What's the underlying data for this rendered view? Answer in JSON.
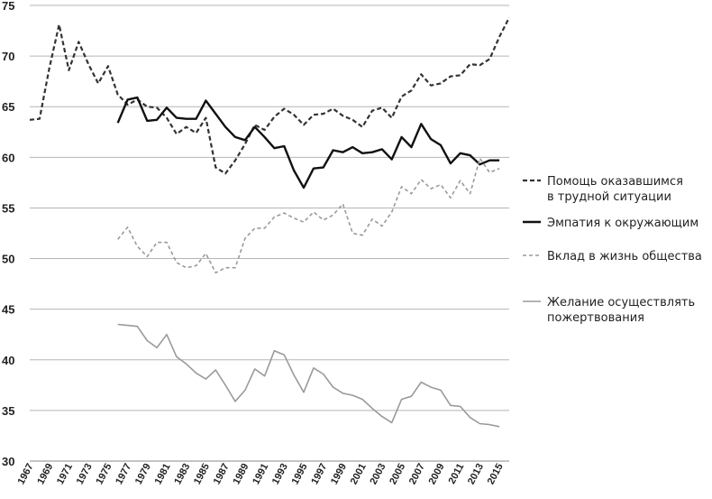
{
  "chart_data": {
    "type": "line",
    "ylim": [
      30,
      75
    ],
    "yticks": [
      30,
      35,
      40,
      45,
      50,
      55,
      60,
      65,
      70,
      75
    ],
    "xlim": [
      1967,
      2016
    ],
    "xticks": [
      "1967",
      "1969",
      "1971",
      "1973",
      "1975",
      "1977",
      "1979",
      "1981",
      "1983",
      "1985",
      "1987",
      "1989",
      "1991",
      "1993",
      "1995",
      "1997",
      "1999",
      "2001",
      "2003",
      "2005",
      "2007",
      "2009",
      "2011",
      "2013",
      "2015"
    ],
    "grid": "horizontal",
    "legend_position": "right",
    "series": [
      {
        "name": "Помощь оказавшимся в трудной ситуации",
        "legend_lines": [
          "Помощь оказавшимся",
          "в трудной ситуации"
        ],
        "color": "#333333",
        "style": "dashed-thick",
        "x": [
          1967,
          1968,
          1969,
          1970,
          1971,
          1972,
          1973,
          1974,
          1975,
          1976,
          1977,
          1978,
          1979,
          1980,
          1981,
          1982,
          1983,
          1984,
          1985,
          1986,
          1987,
          1988,
          1989,
          1990,
          1991,
          1992,
          1993,
          1994,
          1995,
          1996,
          1997,
          1998,
          1999,
          2000,
          2001,
          2002,
          2003,
          2004,
          2005,
          2006,
          2007,
          2008,
          2009,
          2010,
          2011,
          2012,
          2013,
          2014,
          2015,
          2016
        ],
        "y": [
          63.7,
          63.8,
          68.8,
          73.1,
          68.6,
          71.4,
          69.2,
          67.3,
          69.0,
          66.2,
          65.2,
          65.7,
          65.0,
          64.9,
          63.9,
          62.3,
          63.0,
          62.4,
          63.9,
          59.0,
          58.4,
          59.7,
          61.3,
          63.2,
          62.7,
          64.0,
          64.8,
          64.2,
          63.2,
          64.2,
          64.3,
          64.8,
          64.1,
          63.7,
          63.0,
          64.6,
          64.9,
          63.9,
          66.0,
          66.6,
          68.2,
          67.1,
          67.3,
          68.0,
          68.1,
          69.2,
          69.1,
          69.7,
          71.9,
          73.8
        ]
      },
      {
        "name": "Эмпатия к окружающим",
        "legend_lines": [
          "Эмпатия к окружающим"
        ],
        "color": "#111111",
        "style": "solid-thick",
        "x": [
          1976,
          1977,
          1978,
          1979,
          1980,
          1981,
          1982,
          1983,
          1984,
          1985,
          1986,
          1987,
          1988,
          1989,
          1990,
          1991,
          1992,
          1993,
          1994,
          1995,
          1996,
          1997,
          1998,
          1999,
          2000,
          2001,
          2002,
          2003,
          2004,
          2005,
          2006,
          2007,
          2008,
          2009,
          2010,
          2011,
          2012,
          2013,
          2014,
          2015
        ],
        "y": [
          63.4,
          65.7,
          65.9,
          63.6,
          63.7,
          64.9,
          63.9,
          63.8,
          63.8,
          65.6,
          64.3,
          63.0,
          62.0,
          61.7,
          63.0,
          62.0,
          60.9,
          61.1,
          58.7,
          57.0,
          58.9,
          59.0,
          60.7,
          60.5,
          61.0,
          60.4,
          60.5,
          60.8,
          59.8,
          62.0,
          61.0,
          63.3,
          61.8,
          61.2,
          59.4,
          60.4,
          60.2,
          59.3,
          59.7,
          59.7
        ]
      },
      {
        "name": "Вклад в жизнь общества",
        "legend_lines": [
          "Вклад в жизнь общества"
        ],
        "color": "#9a9a9a",
        "style": "dashed-thin",
        "x": [
          1976,
          1977,
          1978,
          1979,
          1980,
          1981,
          1982,
          1983,
          1984,
          1985,
          1986,
          1987,
          1988,
          1989,
          1990,
          1991,
          1992,
          1993,
          1994,
          1995,
          1996,
          1997,
          1998,
          1999,
          2000,
          2001,
          2002,
          2003,
          2004,
          2005,
          2006,
          2007,
          2008,
          2009,
          2010,
          2011,
          2012,
          2013,
          2014,
          2015
        ],
        "y": [
          51.9,
          53.1,
          51.2,
          50.2,
          51.6,
          51.6,
          49.6,
          49.1,
          49.3,
          50.5,
          48.6,
          49.1,
          49.1,
          52.0,
          53.0,
          53.0,
          54.1,
          54.5,
          54.0,
          53.6,
          54.6,
          53.8,
          54.3,
          55.4,
          52.5,
          52.3,
          53.9,
          53.2,
          54.6,
          57.1,
          56.4,
          57.8,
          56.9,
          57.3,
          56.0,
          57.7,
          56.4,
          59.9,
          58.5,
          58.9
        ]
      },
      {
        "name": "Желание осуществлять пожертвования",
        "legend_lines": [
          "Желание осуществлять",
          "пожертвования"
        ],
        "color": "#9a9a9a",
        "style": "solid-thin",
        "x": [
          1976,
          1977,
          1978,
          1979,
          1980,
          1981,
          1982,
          1983,
          1984,
          1985,
          1986,
          1987,
          1988,
          1989,
          1990,
          1991,
          1992,
          1993,
          1994,
          1995,
          1996,
          1997,
          1998,
          1999,
          2000,
          2001,
          2002,
          2003,
          2004,
          2005,
          2006,
          2007,
          2008,
          2009,
          2010,
          2011,
          2012,
          2013,
          2014,
          2015
        ],
        "y": [
          43.5,
          43.4,
          43.3,
          41.9,
          41.2,
          42.5,
          40.3,
          39.6,
          38.7,
          38.1,
          39.0,
          37.5,
          35.9,
          37.0,
          39.1,
          38.4,
          40.9,
          40.5,
          38.5,
          36.8,
          39.2,
          38.6,
          37.3,
          36.7,
          36.5,
          36.1,
          35.2,
          34.4,
          33.8,
          36.1,
          36.4,
          37.8,
          37.3,
          37.0,
          35.5,
          35.4,
          34.3,
          33.7,
          33.6,
          33.4
        ]
      }
    ]
  }
}
